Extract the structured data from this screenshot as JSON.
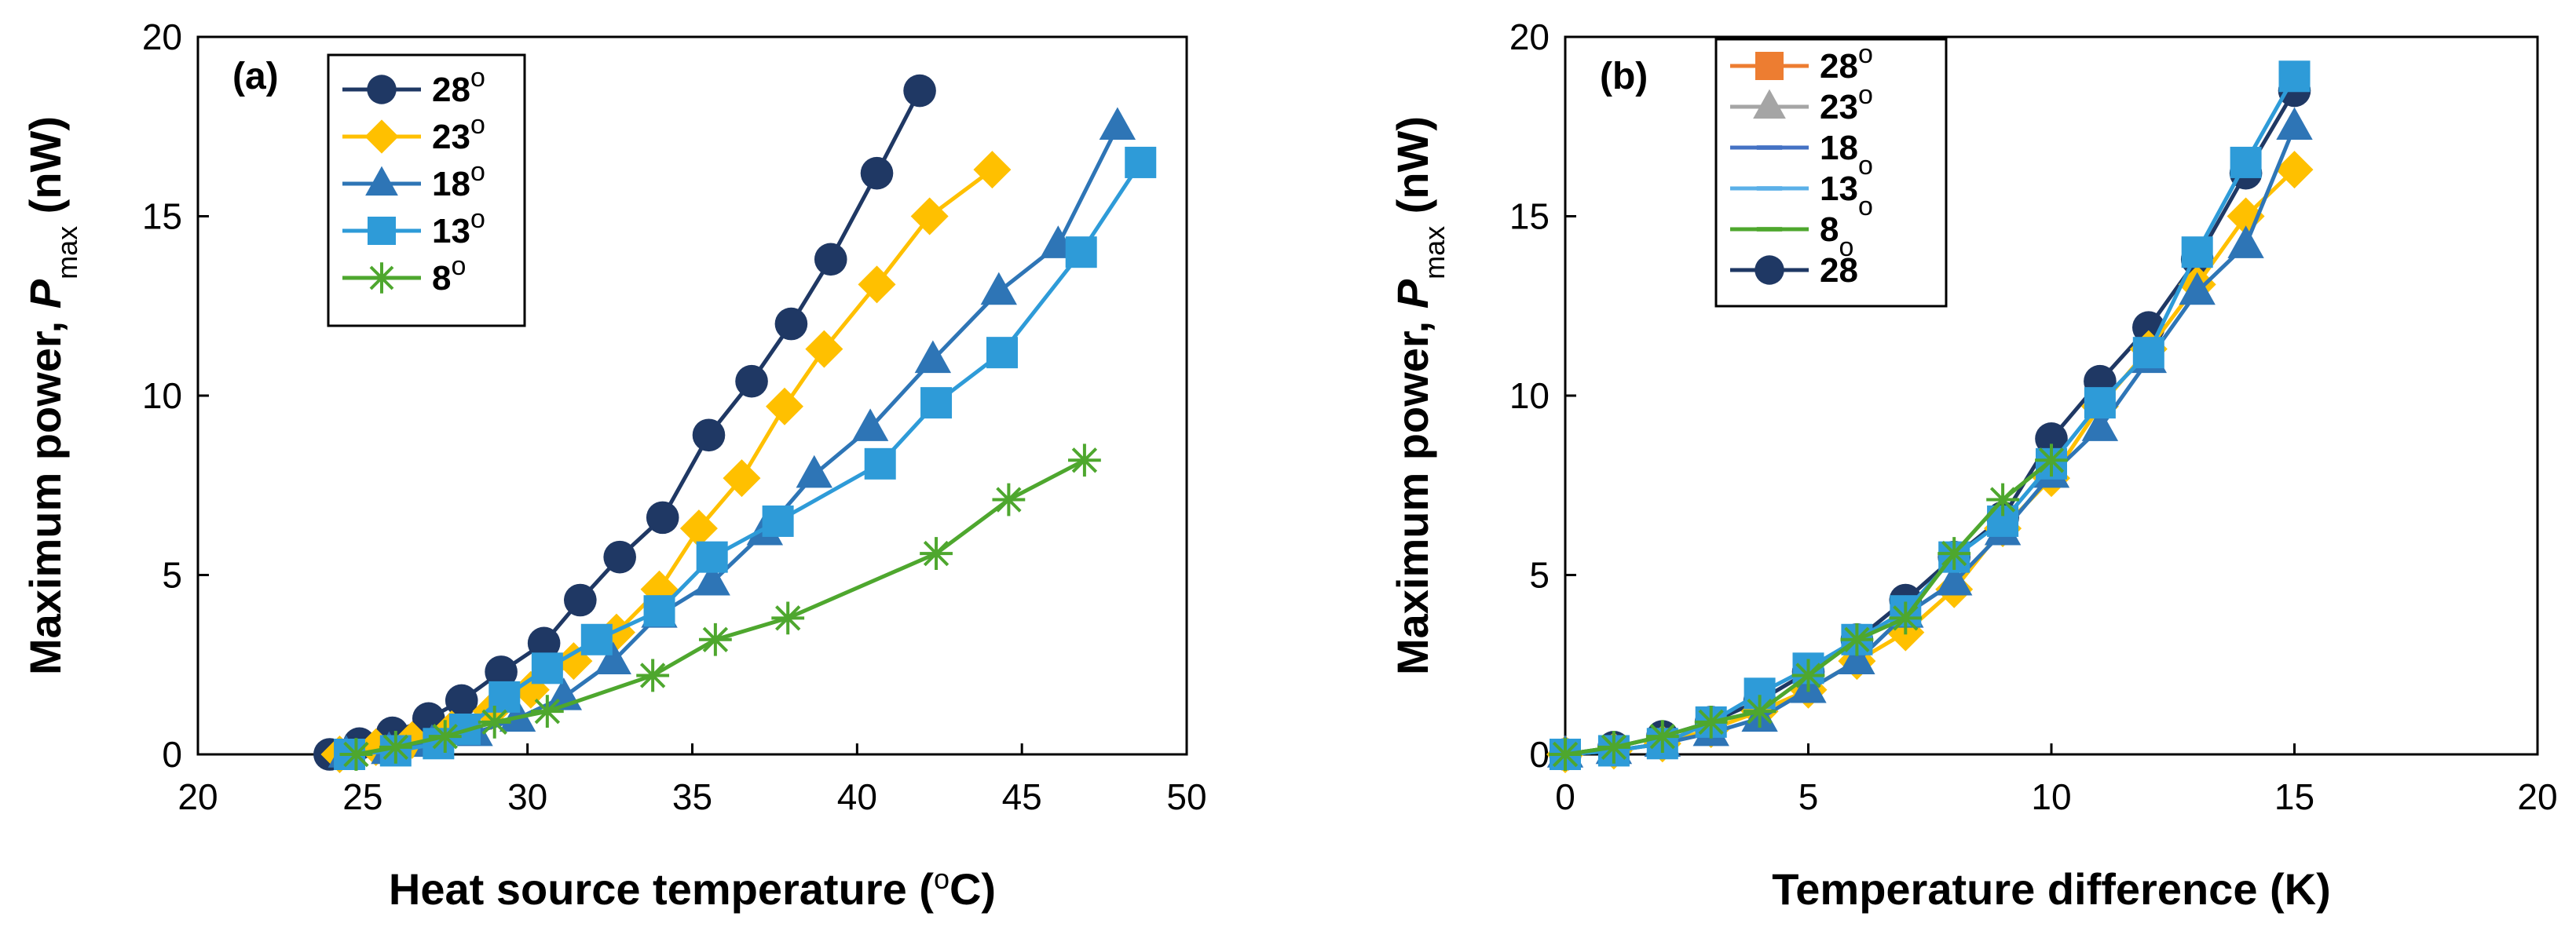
{
  "chart_data": [
    {
      "type": "line",
      "panel_label": "(a)",
      "xlabel": "Heat source temperature (",
      "xlabel_sup": "o",
      "xlabel_end": "C)",
      "ylabel": "Maximum power, ",
      "ylabel_sym": "P",
      "ylabel_sub": "max",
      "ylabel_unit": " (nW)",
      "xlim": [
        20,
        50
      ],
      "ylim": [
        0,
        20
      ],
      "xticks": [
        "20",
        "25",
        "30",
        "35",
        "40",
        "45",
        "50"
      ],
      "yticks": [
        "0",
        "5",
        "10",
        "15",
        "20"
      ],
      "series": [
        {
          "name": "28",
          "sup": "o",
          "marker": "circle",
          "color": "#1F3864",
          "x": [
            24.0,
            24.9,
            25.9,
            27.0,
            28.0,
            29.2,
            30.5,
            31.6,
            32.8,
            34.1,
            35.5,
            36.8,
            38.0,
            39.2,
            40.6,
            41.9
          ],
          "y": [
            0.0,
            0.3,
            0.6,
            1.0,
            1.5,
            2.3,
            3.1,
            4.3,
            5.5,
            6.6,
            8.9,
            10.4,
            12.0,
            13.8,
            16.2,
            18.5
          ]
        },
        {
          "name": "23",
          "sup": "o",
          "marker": "diamond",
          "color": "#FFC000",
          "x": [
            24.3,
            25.4,
            26.5,
            27.7,
            28.9,
            30.1,
            31.4,
            32.7,
            34.0,
            35.2,
            36.5,
            37.8,
            39.0,
            40.6,
            42.2,
            44.1
          ],
          "y": [
            0.0,
            0.2,
            0.4,
            0.7,
            1.2,
            1.8,
            2.6,
            3.4,
            4.6,
            6.3,
            7.7,
            9.7,
            11.3,
            13.1,
            15.0,
            16.3
          ]
        },
        {
          "name": "18",
          "sup": "o",
          "marker": "triangle",
          "color": "#2E75B6",
          "x": [
            24.5,
            25.8,
            27.1,
            28.4,
            29.7,
            31.1,
            32.6,
            34.0,
            35.6,
            37.2,
            38.7,
            40.4,
            42.3,
            44.3,
            46.1,
            47.9
          ],
          "y": [
            0.0,
            0.1,
            0.3,
            0.6,
            1.0,
            1.6,
            2.6,
            3.9,
            4.8,
            6.2,
            7.8,
            9.1,
            11.0,
            12.9,
            14.2,
            17.5
          ]
        },
        {
          "name": "13",
          "sup": "o",
          "marker": "square",
          "color": "#2E9BD8",
          "x": [
            24.6,
            26.0,
            27.3,
            28.1,
            29.3,
            30.6,
            32.1,
            34.0,
            35.6,
            37.6,
            40.7,
            42.4,
            44.4,
            46.8,
            48.6
          ],
          "y": [
            0.0,
            0.1,
            0.3,
            0.7,
            1.6,
            2.4,
            3.2,
            4.0,
            5.5,
            6.5,
            8.1,
            9.8,
            11.2,
            14.0,
            16.5
          ]
        },
        {
          "name": "8",
          "sup": "o",
          "marker": "asterisk",
          "color": "#4EA72E",
          "x": [
            24.8,
            26.0,
            27.5,
            29.0,
            30.6,
            33.8,
            35.7,
            37.9,
            42.4,
            44.6,
            46.9
          ],
          "y": [
            0.0,
            0.2,
            0.5,
            0.9,
            1.2,
            2.2,
            3.2,
            3.8,
            5.6,
            7.1,
            8.2
          ]
        }
      ]
    },
    {
      "type": "line",
      "panel_label": "(b)",
      "xlabel": "Temperature difference (K)",
      "ylabel": "Maximum power, ",
      "ylabel_sym": "P",
      "ylabel_sub": "max",
      "ylabel_unit": " (nW)",
      "xlim": [
        0,
        20
      ],
      "ylim": [
        0,
        20
      ],
      "xticks": [
        "0",
        "5",
        "10",
        "15",
        "20"
      ],
      "yticks": [
        "0",
        "5",
        "10",
        "15",
        "20"
      ],
      "legend": [
        {
          "name": "28",
          "sup": "o",
          "sub": "",
          "color": "#ED7D31",
          "marker": "square"
        },
        {
          "name": "23",
          "sup": "o",
          "sub": "",
          "color": "#A5A5A5",
          "marker": "triangle"
        },
        {
          "name": "18",
          "sup": "",
          "sub": "o",
          "color": "#4472C4",
          "marker": "dash"
        },
        {
          "name": "13",
          "sup": "",
          "sub": "o",
          "color": "#5BB0E8",
          "marker": "dash"
        },
        {
          "name": "8",
          "sup": "",
          "sub": "o",
          "color": "#4EA72E",
          "marker": "dash"
        },
        {
          "name": "28",
          "sup": "",
          "sub": "",
          "color": "#1F3864",
          "marker": "circle"
        }
      ],
      "series": [
        {
          "name": "28 circle",
          "marker": "circle",
          "color": "#1F3864",
          "x": [
            0,
            1,
            2,
            3,
            4,
            5,
            6,
            7,
            8,
            9,
            10,
            11,
            12,
            13,
            14,
            15
          ],
          "y": [
            0.0,
            0.2,
            0.5,
            0.9,
            1.5,
            2.3,
            3.2,
            4.3,
            5.5,
            6.6,
            8.8,
            10.4,
            11.9,
            13.8,
            16.2,
            18.5
          ]
        },
        {
          "name": "23 diamond",
          "marker": "diamond",
          "color": "#FFC000",
          "x": [
            0,
            1,
            2,
            3,
            4,
            5,
            6,
            7,
            8,
            9,
            10,
            11,
            12,
            13,
            14,
            15
          ],
          "y": [
            0.0,
            0.1,
            0.3,
            0.7,
            1.2,
            1.8,
            2.6,
            3.4,
            4.6,
            6.3,
            7.7,
            9.7,
            11.3,
            13.1,
            15.0,
            16.3
          ]
        },
        {
          "name": "18 triangle",
          "marker": "triangle",
          "color": "#2E75B6",
          "x": [
            0,
            1,
            2,
            3,
            4,
            5,
            6,
            7,
            8,
            9,
            10,
            11,
            12,
            13,
            14,
            15
          ],
          "y": [
            0.0,
            0.1,
            0.3,
            0.6,
            1.0,
            1.8,
            2.6,
            3.9,
            4.8,
            6.2,
            7.8,
            9.1,
            11.0,
            12.9,
            14.2,
            17.5
          ]
        },
        {
          "name": "13 square",
          "marker": "square",
          "color": "#2E9BD8",
          "x": [
            0,
            1,
            2,
            3,
            4,
            5,
            6,
            7,
            8,
            9,
            10,
            11,
            12,
            13,
            14,
            15
          ],
          "y": [
            0.0,
            0.1,
            0.3,
            0.9,
            1.7,
            2.4,
            3.2,
            4.0,
            5.5,
            6.5,
            8.1,
            9.8,
            11.2,
            14.0,
            16.5,
            18.9
          ]
        },
        {
          "name": "8 asterisk",
          "marker": "asterisk",
          "color": "#4EA72E",
          "x": [
            0,
            1,
            2,
            3,
            4,
            5,
            6,
            7,
            8,
            9,
            10
          ],
          "y": [
            0.0,
            0.2,
            0.5,
            0.9,
            1.2,
            2.2,
            3.2,
            3.8,
            5.6,
            7.1,
            8.2
          ]
        }
      ]
    }
  ]
}
